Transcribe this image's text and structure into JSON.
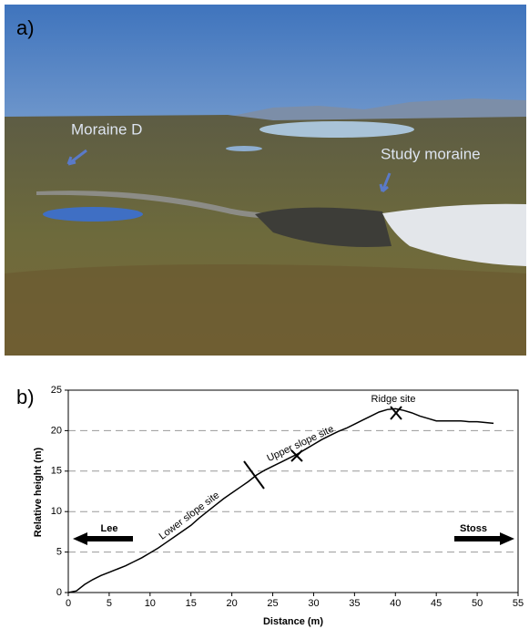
{
  "panels": [
    "a)",
    "b)"
  ],
  "photo": {
    "labels": [
      "Moraine D",
      "Study moraine"
    ]
  },
  "chart_data": {
    "type": "line",
    "xlabel": "Distance (m)",
    "ylabel": "Relative height (m)",
    "x": [
      0,
      1,
      2,
      3,
      4,
      5,
      6,
      7,
      8,
      9,
      10,
      11,
      12,
      13,
      14,
      15,
      16,
      17,
      18,
      19,
      20,
      21,
      22,
      23,
      24,
      25,
      26,
      27,
      28,
      29,
      30,
      31,
      32,
      33,
      34,
      35,
      36,
      37,
      38,
      39,
      40,
      41,
      42,
      43,
      44,
      45,
      46,
      47,
      48,
      49,
      50,
      51,
      52
    ],
    "values": [
      0,
      0.2,
      1,
      1.6,
      2.1,
      2.5,
      2.9,
      3.3,
      3.8,
      4.3,
      4.9,
      5.5,
      6.2,
      6.9,
      7.6,
      8.3,
      9.2,
      10,
      10.8,
      11.6,
      12.3,
      13,
      13.7,
      14.5,
      15.1,
      15.6,
      16.1,
      16.6,
      17.1,
      17.7,
      18.3,
      18.9,
      19.4,
      19.9,
      20.3,
      20.8,
      21.3,
      21.8,
      22.3,
      22.6,
      22.7,
      22.5,
      22.2,
      21.8,
      21.5,
      21.2,
      21.2,
      21.2,
      21.2,
      21.1,
      21.1,
      21,
      20.9
    ],
    "color": "#000000",
    "xlim": [
      0,
      55
    ],
    "ylim": [
      0,
      25
    ],
    "xticks": [
      0,
      5,
      10,
      15,
      20,
      25,
      30,
      35,
      40,
      45,
      50,
      55
    ],
    "yticks": [
      0,
      5,
      10,
      15,
      20,
      25
    ],
    "grid": true,
    "annotations": [
      "Ridge site",
      "Upper slope site",
      "Lower slope site",
      "Lee",
      "Stoss"
    ]
  }
}
